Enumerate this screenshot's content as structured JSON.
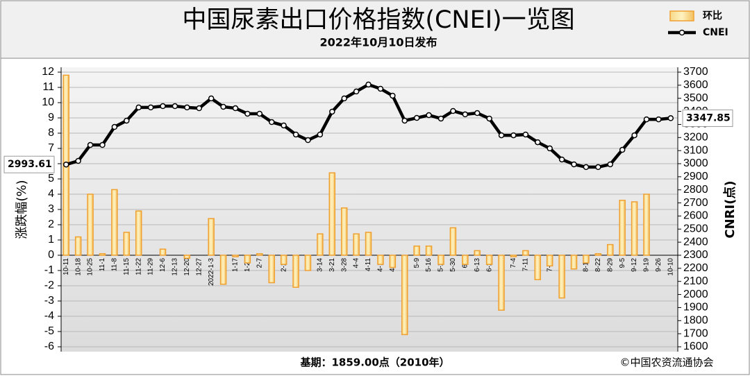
{
  "chart_data": {
    "type": "combo",
    "title": "中国尿素出口价格指数(CNEI)一览图",
    "subtitle": "2022年10月10日发布",
    "ylabel": "涨跌幅(%)",
    "y2label": "CNRI(点)",
    "annotations": [
      "基期：1859.00点（2010年）",
      "©中国农资流通协会"
    ],
    "categories": [
      "10-11",
      "10-18",
      "10-25",
      "11-1",
      "11-8",
      "11-15",
      "11-22",
      "11-29",
      "12-6",
      "12-13",
      "12-20",
      "12-27",
      "2022-1-3",
      "1-10",
      "1-17",
      "1-24",
      "2-7",
      "2-14",
      "2-21",
      "2-28",
      "3-7",
      "3-14",
      "3-21",
      "3-28",
      "4-4",
      "4-11",
      "4-18",
      "4-25",
      "5-2",
      "5-9",
      "5-16",
      "5-23",
      "5-30",
      "6-6",
      "6-13",
      "6-20",
      "6-27",
      "7-4",
      "7-11",
      "7-18",
      "7-25",
      "8-1",
      "8-8",
      "8-15",
      "8-22",
      "8-29",
      "9-5",
      "9-12",
      "9-19",
      "9-26",
      "10-10"
    ],
    "series": [
      {
        "name": "环比",
        "type": "bar",
        "color": "#f0a030",
        "values": [
          11.8,
          1.2,
          4.0,
          0.1,
          4.3,
          1.5,
          2.9,
          0,
          0.4,
          0,
          -0.2,
          0,
          2.4,
          -1.9,
          -0.1,
          -0.5,
          0.1,
          -1.8,
          -0.6,
          -2.1,
          -1.0,
          1.4,
          5.4,
          3.1,
          1.4,
          1.5,
          -0.6,
          -0.8,
          -5.2,
          0.6,
          0.6,
          -0.6,
          1.8,
          -0.6,
          0.3,
          -0.6,
          -3.6,
          -0.1,
          0.3,
          -1.6,
          -0.7,
          -2.8,
          -0.9,
          -0.5,
          0.1,
          0.7,
          3.6,
          3.5,
          4.0,
          0,
          0
        ]
      },
      {
        "name": "CNEI",
        "type": "line",
        "color": "#000000",
        "axis": "y2",
        "values": [
          2993.61,
          3021,
          3143,
          3143,
          3281,
          3329,
          3430,
          3430,
          3440,
          3440,
          3430,
          3424,
          3499,
          3435,
          3424,
          3382,
          3382,
          3318,
          3292,
          3223,
          3180,
          3223,
          3398,
          3499,
          3552,
          3605,
          3573,
          3520,
          3329,
          3350,
          3371,
          3345,
          3403,
          3377,
          3387,
          3345,
          3217,
          3217,
          3223,
          3164,
          3117,
          3032,
          2995,
          2974,
          2974,
          2995,
          3106,
          3217,
          3339,
          3339,
          3347.85
        ]
      }
    ],
    "ylim": [
      -6,
      12
    ],
    "yticks": [
      -6,
      -5,
      -4,
      -3,
      -2,
      -1,
      0,
      1,
      2,
      3,
      4,
      5,
      6,
      7,
      8,
      9,
      10,
      11,
      12
    ],
    "y2lim": [
      1600,
      3700
    ],
    "y2ticks": [
      1600,
      1700,
      1800,
      1900,
      2000,
      2100,
      2200,
      2300,
      2400,
      2500,
      2600,
      2700,
      2800,
      2900,
      3000,
      3100,
      3200,
      3300,
      3400,
      3500,
      3600,
      3700
    ],
    "grid": true
  }
}
